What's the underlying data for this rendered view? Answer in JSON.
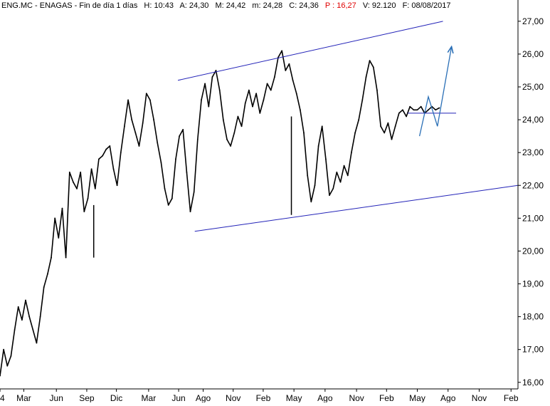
{
  "header": {
    "symbol": "ENG.MC - ENAGAS - Fin de día 1 días",
    "high": "H: 10:43",
    "open": "A: 24,30",
    "mid": "M: 24,42",
    "low": "m: 24,28",
    "close": "C: 24,36",
    "p": "P : 16,27",
    "volume": "V: 92.120",
    "date": "F: 08/08/2017"
  },
  "colors": {
    "price": "#000000",
    "trendline": "#2323b8",
    "projection": "#2a6fb6",
    "p_value": "#e00000",
    "axis": "#000000"
  },
  "chart_data": {
    "type": "line",
    "title": "ENG.MC - ENAGAS",
    "xlabel": "",
    "ylabel": "",
    "ylim": [
      15.8,
      27.3
    ],
    "y_ticks": [
      "16,00",
      "17,00",
      "18,00",
      "19,00",
      "20,00",
      "21,00",
      "22,00",
      "23,00",
      "24,00",
      "25,00",
      "26,00",
      "27,00"
    ],
    "y_tick_values": [
      16,
      17,
      18,
      19,
      20,
      21,
      22,
      23,
      24,
      25,
      26,
      27
    ],
    "x_tick_labels": [
      "4",
      "Mar",
      "Jun",
      "Sep",
      "Dic",
      "Mar",
      "Jun",
      "Ago",
      "Nov",
      "Feb",
      "May",
      "Ago",
      "Nov",
      "Feb",
      "May",
      "Ago",
      "Nov",
      "Feb"
    ],
    "x_tick_index": [
      0,
      6.5,
      15.4,
      23.7,
      31.8,
      40.6,
      48.8,
      55.5,
      63.7,
      71.9,
      80.3,
      88.8,
      97.4,
      105.6,
      114.0,
      122.4,
      130.9,
      139.6
    ],
    "x_range": [
      0,
      141.5
    ],
    "series": [
      {
        "x": [
          0,
          1,
          2,
          3,
          4,
          5,
          6,
          7,
          8,
          9,
          10,
          11,
          12,
          13,
          14,
          15,
          16,
          17,
          18,
          19,
          20,
          21,
          22,
          23,
          24,
          25,
          26,
          27,
          28,
          29,
          30,
          31,
          32,
          33,
          34,
          35,
          36,
          37,
          38,
          39,
          40,
          41,
          42,
          43,
          44,
          45,
          46,
          47,
          48,
          49,
          50,
          51,
          52,
          53,
          54,
          55,
          56,
          57,
          58,
          59,
          60,
          61,
          62,
          63,
          64,
          65,
          66,
          67,
          68,
          69,
          70,
          71,
          72,
          73,
          74,
          75,
          76,
          77,
          78,
          79,
          80,
          81,
          82,
          83,
          84,
          85,
          86,
          87,
          88,
          89,
          90,
          91,
          92,
          93,
          94,
          95,
          96,
          97,
          98,
          99,
          100,
          101,
          102,
          103,
          104,
          105,
          106,
          107,
          108,
          109,
          110,
          111,
          112,
          113,
          114,
          115,
          116,
          117,
          118,
          119,
          120
        ],
        "values": [
          16.2,
          17.0,
          16.5,
          16.8,
          17.6,
          18.3,
          17.9,
          18.5,
          18.0,
          17.6,
          17.2,
          18.0,
          18.9,
          19.3,
          19.8,
          21.0,
          20.4,
          21.3,
          19.8,
          22.4,
          22.1,
          21.9,
          22.4,
          21.2,
          21.6,
          22.5,
          21.9,
          22.8,
          22.9,
          23.1,
          23.2,
          22.5,
          22.0,
          23.0,
          23.8,
          24.6,
          24.0,
          23.6,
          23.2,
          23.9,
          24.8,
          24.6,
          24.0,
          23.3,
          22.7,
          21.9,
          21.4,
          21.6,
          22.8,
          23.5,
          23.7,
          22.4,
          21.2,
          21.8,
          23.4,
          24.6,
          25.1,
          24.4,
          25.3,
          25.5,
          24.9,
          24.0,
          23.4,
          23.2,
          23.6,
          24.1,
          23.8,
          24.5,
          24.9,
          24.4,
          24.8,
          24.2,
          24.6,
          25.1,
          24.9,
          25.3,
          25.9,
          26.1,
          25.5,
          25.7,
          25.2,
          24.8,
          24.3,
          23.6,
          22.3,
          21.5,
          22.0,
          23.2,
          23.8,
          22.8,
          21.7,
          21.9,
          22.4,
          22.1,
          22.6,
          22.3,
          23.0,
          23.6,
          24.0,
          24.6,
          25.3,
          25.8,
          25.6,
          24.9,
          23.8,
          23.6,
          23.9,
          23.4,
          23.8,
          24.2,
          24.3,
          24.1,
          24.4,
          24.3,
          24.3,
          24.4,
          24.2,
          24.3,
          24.4,
          24.3,
          24.36
        ]
      }
    ],
    "spikes": [
      {
        "x": 25.6,
        "values": [
          19.8,
          21.4
        ]
      },
      {
        "x": 79.6,
        "values": [
          21.1,
          24.1
        ]
      }
    ],
    "trendlines": [
      {
        "name": "upper-channel",
        "x": [
          48.6,
          121.0
        ],
        "values": [
          25.2,
          27.0
        ]
      },
      {
        "name": "lower-channel",
        "x": [
          53.2,
          141.5
        ],
        "values": [
          20.6,
          22.0
        ]
      }
    ],
    "horizontal_line": {
      "x": [
        111.4,
        124.6
      ],
      "value": 24.2
    },
    "projection": {
      "x": [
        114.6,
        117.0,
        119.5,
        123.3
      ],
      "values": [
        23.5,
        24.7,
        23.8,
        26.2
      ]
    },
    "grid": false
  }
}
